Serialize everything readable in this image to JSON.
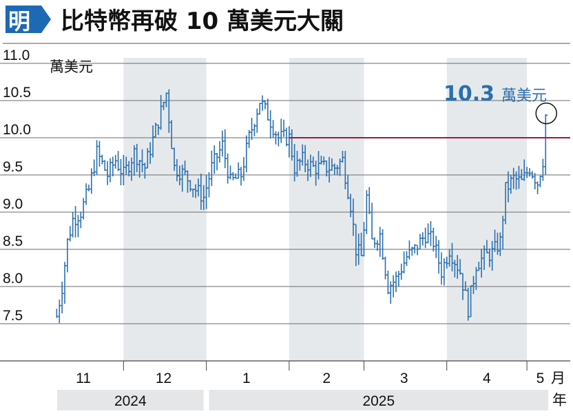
{
  "logo_text": "明",
  "title": "比特幣再破 10 萬美元大關",
  "colors": {
    "accent_blue": "#2a6fae",
    "threshold_red": "#a0173c",
    "band_grey": "#e6e9ec",
    "logo_blue": "#1d69b3"
  },
  "chart_data": {
    "type": "ohlc",
    "title": "比特幣再破 10 萬美元大關",
    "unit_label": "萬美元",
    "ylim": [
      7.0,
      11.0
    ],
    "y_ticks": [
      7.5,
      8.0,
      8.5,
      9.0,
      9.5,
      10.0,
      10.5,
      11.0
    ],
    "y_tick_labels": [
      "7.5",
      "8.0",
      "8.5",
      "9.0",
      "9.5",
      "10.0",
      "10.5",
      "11.0"
    ],
    "grid": true,
    "threshold": {
      "value": 10.0
    },
    "x_start": "2024-11-01",
    "x_end": "2025-05-10",
    "month_labels": [
      {
        "label": "11",
        "date": "2024-11-16"
      },
      {
        "label": "12",
        "date": "2024-12-16"
      },
      {
        "label": "1",
        "date": "2025-01-16"
      },
      {
        "label": "2",
        "date": "2025-02-15"
      },
      {
        "label": "3",
        "date": "2025-03-16"
      },
      {
        "label": "4",
        "date": "2025-04-16"
      },
      {
        "label": "5",
        "date": "2025-05-06"
      }
    ],
    "month_separators": [
      "2024-12-01",
      "2025-01-01",
      "2025-02-01",
      "2025-03-01",
      "2025-04-01",
      "2025-05-01"
    ],
    "shaded_months": [
      {
        "from": "2024-12-01",
        "to": "2025-01-01"
      },
      {
        "from": "2025-02-01",
        "to": "2025-03-01"
      },
      {
        "from": "2025-04-01",
        "to": "2025-05-01"
      }
    ],
    "year_label_text": "年",
    "year_bands": [
      {
        "label": "2024",
        "from": "2024-11-01",
        "to": "2025-01-01"
      },
      {
        "label": "2025",
        "from": "2025-01-01",
        "to": "2025-05-10"
      }
    ],
    "annotation": {
      "value_text": "10.3",
      "unit": "萬美元",
      "date": "2025-05-08",
      "value": 10.3
    },
    "anchors": [
      [
        "2024-11-06",
        7.6
      ],
      [
        "2024-11-08",
        8.0
      ],
      [
        "2024-11-10",
        8.6
      ],
      [
        "2024-11-12",
        8.9
      ],
      [
        "2024-11-15",
        9.0
      ],
      [
        "2024-11-18",
        9.3
      ],
      [
        "2024-11-21",
        9.8
      ],
      [
        "2024-11-25",
        9.5
      ],
      [
        "2024-11-28",
        9.7
      ],
      [
        "2024-12-01",
        9.5
      ],
      [
        "2024-12-05",
        9.8
      ],
      [
        "2024-12-09",
        9.6
      ],
      [
        "2024-12-13",
        10.1
      ],
      [
        "2024-12-17",
        10.6
      ],
      [
        "2024-12-20",
        9.6
      ],
      [
        "2024-12-24",
        9.5
      ],
      [
        "2024-12-28",
        9.3
      ],
      [
        "2024-12-31",
        9.2
      ],
      [
        "2025-01-03",
        9.6
      ],
      [
        "2025-01-07",
        9.9
      ],
      [
        "2025-01-10",
        9.4
      ],
      [
        "2025-01-14",
        9.5
      ],
      [
        "2025-01-17",
        10.0
      ],
      [
        "2025-01-21",
        10.5
      ],
      [
        "2025-01-24",
        10.3
      ],
      [
        "2025-01-28",
        10.0
      ],
      [
        "2025-02-01",
        10.0
      ],
      [
        "2025-02-03",
        9.6
      ],
      [
        "2025-02-06",
        9.7
      ],
      [
        "2025-02-10",
        9.6
      ],
      [
        "2025-02-14",
        9.6
      ],
      [
        "2025-02-18",
        9.6
      ],
      [
        "2025-02-21",
        9.7
      ],
      [
        "2025-02-24",
        9.1
      ],
      [
        "2025-02-26",
        8.5
      ],
      [
        "2025-02-28",
        8.4
      ],
      [
        "2025-03-02",
        9.2
      ],
      [
        "2025-03-04",
        8.6
      ],
      [
        "2025-03-07",
        8.7
      ],
      [
        "2025-03-10",
        8.0
      ],
      [
        "2025-03-13",
        8.1
      ],
      [
        "2025-03-17",
        8.4
      ],
      [
        "2025-03-20",
        8.5
      ],
      [
        "2025-03-24",
        8.7
      ],
      [
        "2025-03-27",
        8.6
      ],
      [
        "2025-03-30",
        8.2
      ],
      [
        "2025-04-02",
        8.5
      ],
      [
        "2025-04-06",
        8.2
      ],
      [
        "2025-04-09",
        7.7
      ],
      [
        "2025-04-12",
        8.3
      ],
      [
        "2025-04-15",
        8.4
      ],
      [
        "2025-04-18",
        8.45
      ],
      [
        "2025-04-21",
        8.6
      ],
      [
        "2025-04-23",
        9.3
      ],
      [
        "2025-04-26",
        9.45
      ],
      [
        "2025-04-29",
        9.4
      ],
      [
        "2025-05-02",
        9.6
      ],
      [
        "2025-05-05",
        9.4
      ],
      [
        "2025-05-07",
        9.7
      ],
      [
        "2025-05-08",
        10.3
      ]
    ]
  }
}
